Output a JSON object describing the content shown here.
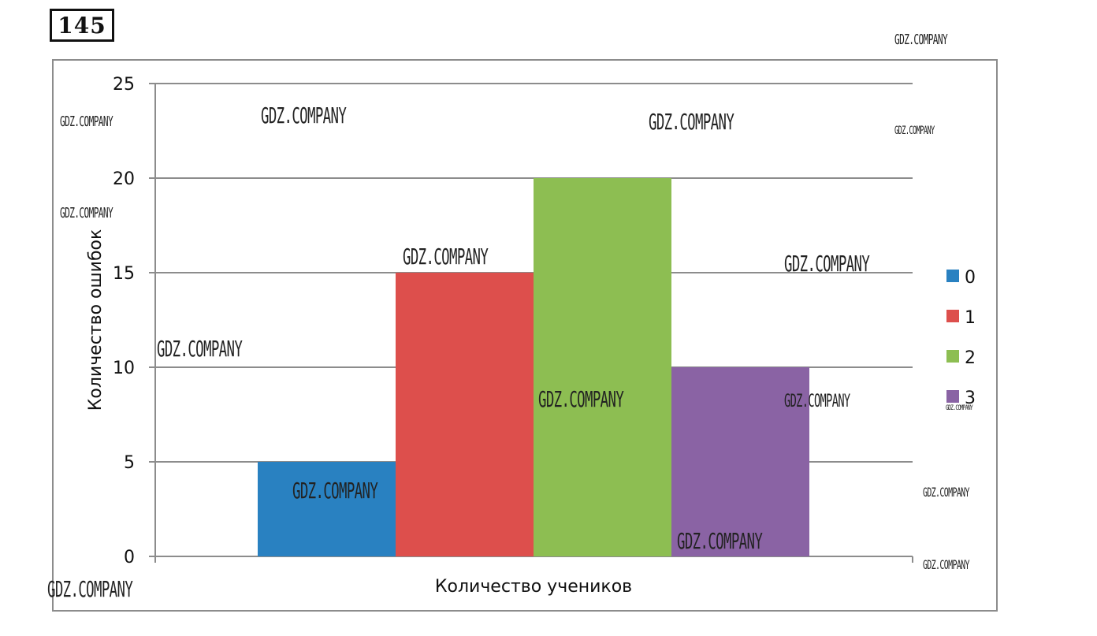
{
  "task_number": "145",
  "watermark": "GDZ.COMPANY",
  "chart_data": {
    "type": "bar",
    "xlabel": "Количество учеников",
    "ylabel": "Количество ошибок",
    "ylim": [
      0,
      25
    ],
    "yticks": [
      0,
      5,
      10,
      15,
      20,
      25
    ],
    "grid": true,
    "legend_position": "right",
    "series": [
      {
        "name": "0",
        "value": 5,
        "color": "#2981c1"
      },
      {
        "name": "1",
        "value": 15,
        "color": "#dd4f4c"
      },
      {
        "name": "2",
        "value": 20,
        "color": "#8dbe52"
      },
      {
        "name": "3",
        "value": 10,
        "color": "#8a63a4"
      }
    ]
  }
}
